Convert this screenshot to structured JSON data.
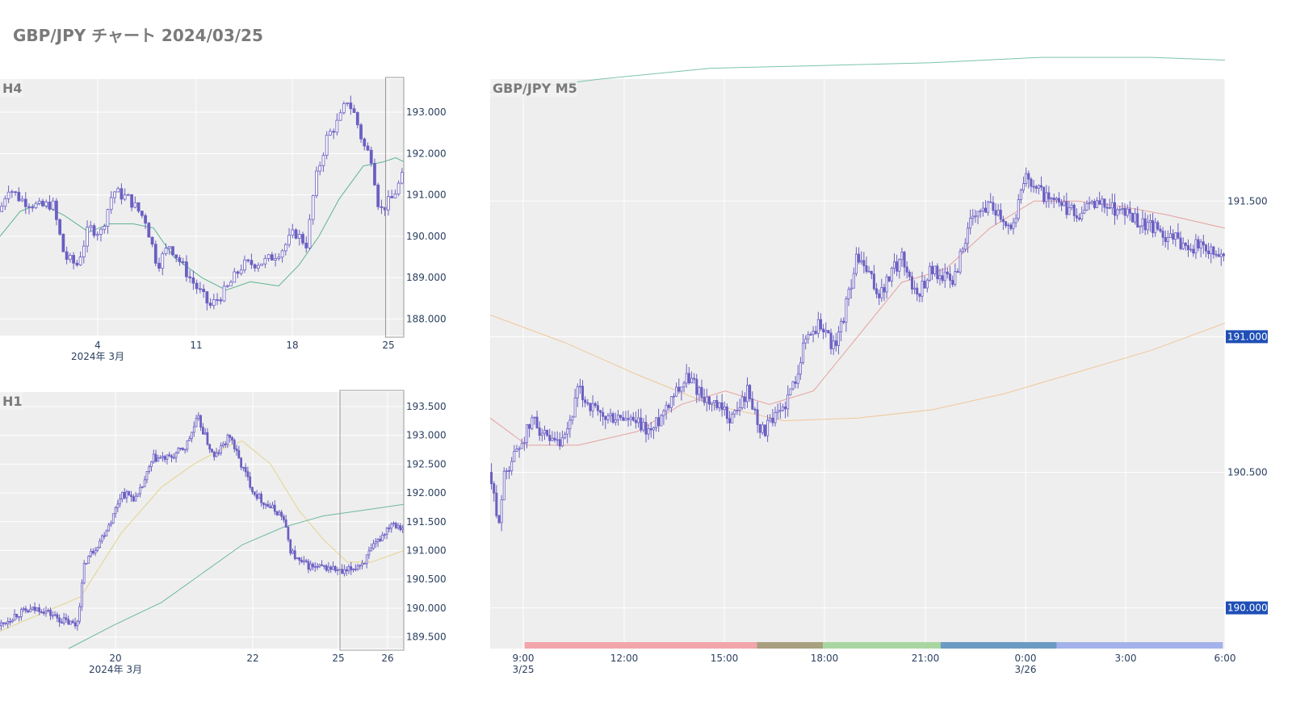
{
  "title": "GBP/JPY チャート 2024/03/25",
  "colors": {
    "candle": "#6a5fc2",
    "plot_bg": "#eeeeee",
    "grid": "#ffffff",
    "tag_bg": "#1f4fb6"
  },
  "chart_data": [
    {
      "id": "h4",
      "type": "candlestick",
      "title": "H4",
      "x_ticks": [
        "4",
        "11",
        "18",
        "25"
      ],
      "x_sublabel": "2024年 3月",
      "y_ticks": [
        "193.000",
        "192.000",
        "191.000",
        "190.000",
        "189.000",
        "188.000"
      ],
      "ylim": [
        187.6,
        193.8
      ],
      "close_path": [
        [
          0,
          190.6
        ],
        [
          0.02,
          191.2
        ],
        [
          0.05,
          190.9
        ],
        [
          0.1,
          190.7
        ],
        [
          0.13,
          190.8
        ],
        [
          0.16,
          189.5
        ],
        [
          0.19,
          189.3
        ],
        [
          0.22,
          190.2
        ],
        [
          0.25,
          190.1
        ],
        [
          0.28,
          191.1
        ],
        [
          0.32,
          190.9
        ],
        [
          0.36,
          190.4
        ],
        [
          0.39,
          189.3
        ],
        [
          0.42,
          189.8
        ],
        [
          0.47,
          189.0
        ],
        [
          0.52,
          188.3
        ],
        [
          0.56,
          188.7
        ],
        [
          0.6,
          189.3
        ],
        [
          0.66,
          189.4
        ],
        [
          0.7,
          189.7
        ],
        [
          0.73,
          190.1
        ],
        [
          0.76,
          189.8
        ],
        [
          0.78,
          191.3
        ],
        [
          0.81,
          192.4
        ],
        [
          0.84,
          192.8
        ],
        [
          0.86,
          193.3
        ],
        [
          0.88,
          192.9
        ],
        [
          0.9,
          192.2
        ],
        [
          0.92,
          191.9
        ],
        [
          0.94,
          190.6
        ],
        [
          0.97,
          190.9
        ],
        [
          1.0,
          191.5
        ]
      ],
      "ma_path": [
        [
          0,
          190.0
        ],
        [
          0.05,
          190.6
        ],
        [
          0.1,
          190.8
        ],
        [
          0.16,
          190.5
        ],
        [
          0.22,
          190.1
        ],
        [
          0.27,
          190.3
        ],
        [
          0.33,
          190.3
        ],
        [
          0.38,
          190.2
        ],
        [
          0.43,
          189.5
        ],
        [
          0.5,
          189.0
        ],
        [
          0.56,
          188.7
        ],
        [
          0.62,
          188.9
        ],
        [
          0.69,
          188.8
        ],
        [
          0.74,
          189.3
        ],
        [
          0.79,
          190.0
        ],
        [
          0.84,
          190.9
        ],
        [
          0.9,
          191.7
        ],
        [
          0.95,
          191.8
        ],
        [
          0.98,
          191.9
        ],
        [
          1.0,
          191.8
        ]
      ],
      "view_range_start_fraction": 0.955
    },
    {
      "id": "h1",
      "type": "candlestick",
      "title": "H1",
      "x_ticks": [
        "20",
        "22",
        "25",
        "26"
      ],
      "x_sublabel": "2024年 3月",
      "y_ticks": [
        "193.500",
        "193.000",
        "192.500",
        "192.000",
        "191.500",
        "191.000",
        "190.500",
        "190.000",
        "189.500"
      ],
      "ylim": [
        189.3,
        193.75
      ],
      "close_path": [
        [
          0,
          189.7
        ],
        [
          0.04,
          189.9
        ],
        [
          0.1,
          190.0
        ],
        [
          0.15,
          189.8
        ],
        [
          0.19,
          189.7
        ],
        [
          0.21,
          190.8
        ],
        [
          0.25,
          191.2
        ],
        [
          0.28,
          191.6
        ],
        [
          0.3,
          192.0
        ],
        [
          0.34,
          191.9
        ],
        [
          0.38,
          192.6
        ],
        [
          0.42,
          192.6
        ],
        [
          0.46,
          192.8
        ],
        [
          0.49,
          193.3
        ],
        [
          0.53,
          192.6
        ],
        [
          0.57,
          193.0
        ],
        [
          0.59,
          192.6
        ],
        [
          0.63,
          192.0
        ],
        [
          0.66,
          191.8
        ],
        [
          0.7,
          191.6
        ],
        [
          0.72,
          191.0
        ],
        [
          0.74,
          190.8
        ],
        [
          0.78,
          190.7
        ],
        [
          0.82,
          190.7
        ],
        [
          0.85,
          190.6
        ],
        [
          0.9,
          190.8
        ],
        [
          0.94,
          191.2
        ],
        [
          0.97,
          191.5
        ],
        [
          1.0,
          191.4
        ]
      ],
      "ma_short_path": [
        [
          0,
          189.6
        ],
        [
          0.1,
          189.9
        ],
        [
          0.2,
          190.2
        ],
        [
          0.3,
          191.3
        ],
        [
          0.4,
          192.1
        ],
        [
          0.48,
          192.5
        ],
        [
          0.56,
          192.8
        ],
        [
          0.6,
          192.9
        ],
        [
          0.67,
          192.5
        ],
        [
          0.74,
          191.7
        ],
        [
          0.8,
          191.2
        ],
        [
          0.86,
          190.8
        ],
        [
          0.92,
          190.8
        ],
        [
          1.0,
          191.0
        ]
      ],
      "ma_long_path": [
        [
          0.17,
          189.3
        ],
        [
          0.28,
          189.7
        ],
        [
          0.4,
          190.1
        ],
        [
          0.5,
          190.6
        ],
        [
          0.6,
          191.1
        ],
        [
          0.7,
          191.4
        ],
        [
          0.8,
          191.6
        ],
        [
          0.9,
          191.7
        ],
        [
          1.0,
          191.8
        ]
      ],
      "view_range_start_fraction": 0.842
    },
    {
      "id": "m5",
      "type": "candlestick",
      "title": "GBP/JPY M5",
      "x_ticks": [
        "9:00",
        "12:00",
        "15:00",
        "18:00",
        "21:00",
        "0:00",
        "3:00",
        "6:00"
      ],
      "x_sublabels": [
        {
          "tick": "9:00",
          "label": "3/25"
        },
        {
          "tick": "0:00",
          "label": "3/26"
        }
      ],
      "y_ticks": [
        "191.500",
        "190.500"
      ],
      "price_tags": [
        "191.000",
        "190.000"
      ],
      "ylim": [
        189.85,
        191.95
      ],
      "close_path": [
        [
          0,
          190.5
        ],
        [
          0.01,
          190.3
        ],
        [
          0.02,
          190.5
        ],
        [
          0.04,
          190.6
        ],
        [
          0.06,
          190.7
        ],
        [
          0.08,
          190.6
        ],
        [
          0.1,
          190.6
        ],
        [
          0.12,
          190.8
        ],
        [
          0.15,
          190.7
        ],
        [
          0.18,
          190.7
        ],
        [
          0.22,
          190.65
        ],
        [
          0.25,
          190.8
        ],
        [
          0.27,
          190.85
        ],
        [
          0.3,
          190.75
        ],
        [
          0.33,
          190.7
        ],
        [
          0.35,
          190.8
        ],
        [
          0.37,
          190.65
        ],
        [
          0.39,
          190.7
        ],
        [
          0.41,
          190.8
        ],
        [
          0.43,
          191.0
        ],
        [
          0.45,
          191.05
        ],
        [
          0.47,
          190.95
        ],
        [
          0.5,
          191.3
        ],
        [
          0.53,
          191.15
        ],
        [
          0.56,
          191.3
        ],
        [
          0.58,
          191.15
        ],
        [
          0.6,
          191.25
        ],
        [
          0.63,
          191.2
        ],
        [
          0.65,
          191.4
        ],
        [
          0.68,
          191.5
        ],
        [
          0.71,
          191.4
        ],
        [
          0.73,
          191.6
        ],
        [
          0.76,
          191.5
        ],
        [
          0.8,
          191.45
        ],
        [
          0.83,
          191.5
        ],
        [
          0.87,
          191.45
        ],
        [
          0.9,
          191.4
        ],
        [
          0.94,
          191.35
        ],
        [
          1.0,
          191.3
        ]
      ],
      "ma_short_path": [
        [
          0,
          190.7
        ],
        [
          0.05,
          190.6
        ],
        [
          0.12,
          190.6
        ],
        [
          0.2,
          190.65
        ],
        [
          0.26,
          190.75
        ],
        [
          0.32,
          190.8
        ],
        [
          0.38,
          190.75
        ],
        [
          0.44,
          190.8
        ],
        [
          0.5,
          191.0
        ],
        [
          0.56,
          191.2
        ],
        [
          0.62,
          191.25
        ],
        [
          0.68,
          191.4
        ],
        [
          0.74,
          191.5
        ],
        [
          0.8,
          191.5
        ],
        [
          0.86,
          191.48
        ],
        [
          0.92,
          191.45
        ],
        [
          1.0,
          191.4
        ]
      ],
      "ma_mid_path": [
        [
          0,
          191.08
        ],
        [
          0.1,
          190.98
        ],
        [
          0.2,
          190.86
        ],
        [
          0.3,
          190.75
        ],
        [
          0.4,
          190.69
        ],
        [
          0.5,
          190.7
        ],
        [
          0.6,
          190.73
        ],
        [
          0.7,
          190.79
        ],
        [
          0.8,
          190.87
        ],
        [
          0.9,
          190.95
        ],
        [
          1.0,
          191.05
        ]
      ],
      "ma_long_path": [
        [
          0,
          191.9
        ],
        [
          0.15,
          191.95
        ],
        [
          0.3,
          191.99
        ],
        [
          0.45,
          192.0
        ],
        [
          0.6,
          192.01
        ],
        [
          0.75,
          192.03
        ],
        [
          0.9,
          192.03
        ],
        [
          1.0,
          192.02
        ]
      ],
      "session_bands": [
        {
          "from": 0.047,
          "to": 0.363,
          "color": "#f2a5ab"
        },
        {
          "from": 0.363,
          "to": 0.453,
          "color": "#a8a07e"
        },
        {
          "from": 0.453,
          "to": 0.613,
          "color": "#a8d6a0"
        },
        {
          "from": 0.613,
          "to": 0.771,
          "color": "#6b9bc2"
        },
        {
          "from": 0.771,
          "to": 0.997,
          "color": "#a3b2ea"
        }
      ]
    }
  ]
}
